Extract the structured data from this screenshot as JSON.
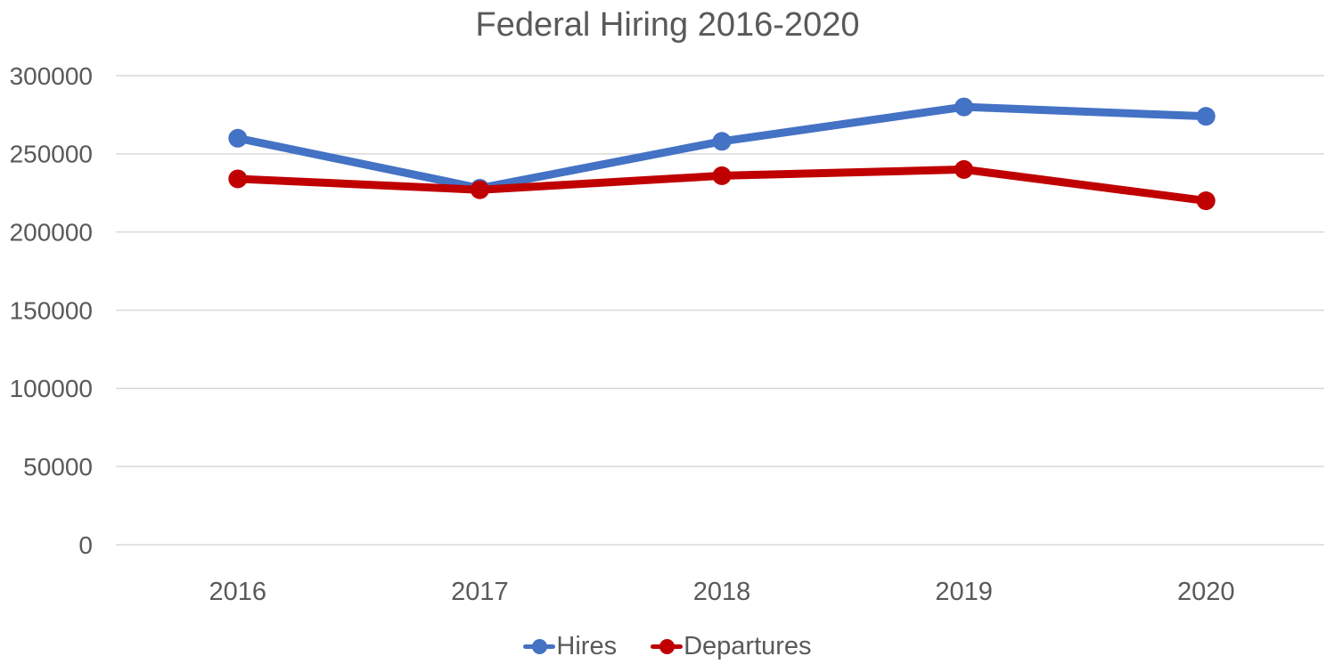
{
  "chart_data": {
    "type": "line",
    "title": "Federal Hiring 2016-2020",
    "categories": [
      "2016",
      "2017",
      "2018",
      "2019",
      "2020"
    ],
    "series": [
      {
        "name": "Hires",
        "color": "#4472C4",
        "values": [
          260000,
          228000,
          258000,
          280000,
          274000
        ]
      },
      {
        "name": "Departures",
        "color": "#C00000",
        "values": [
          234000,
          227000,
          236000,
          240000,
          220000
        ]
      }
    ],
    "xlabel": "",
    "ylabel": "",
    "ylim": [
      0,
      300000
    ],
    "y_tick_step": 50000,
    "y_ticks": [
      "0",
      "50000",
      "100000",
      "150000",
      "200000",
      "250000",
      "300000"
    ],
    "grid": "horizontal-only",
    "legend_position": "bottom"
  },
  "styles": {
    "text_color": "#595959",
    "gridline_color": "#D9D9D9",
    "background_color": "#FFFFFF",
    "line_width": 9,
    "marker_radius": 10.5
  }
}
